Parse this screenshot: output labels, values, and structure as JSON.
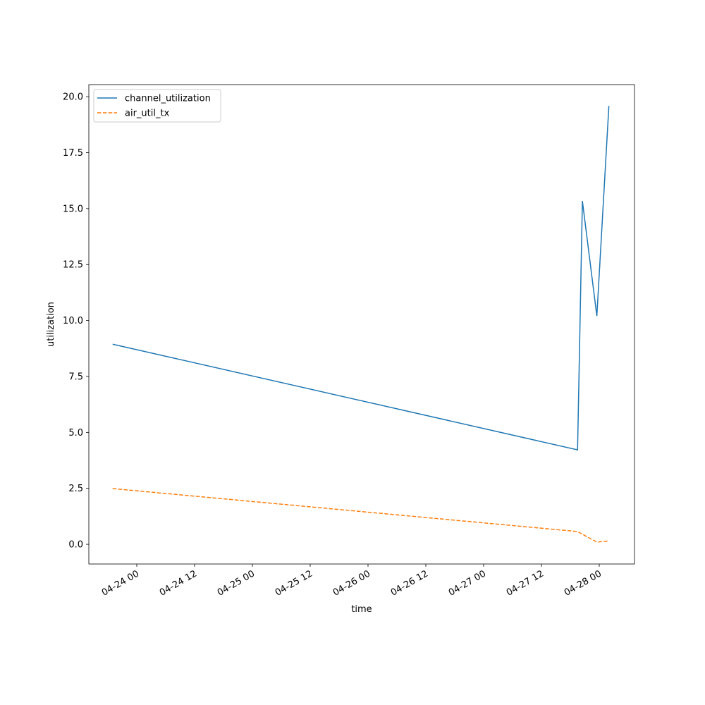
{
  "chart_data": {
    "type": "line",
    "xlabel": "time",
    "ylabel": "utilization",
    "x": [
      "04-23 19:00",
      "04-27 19:30",
      "04-27 20:30",
      "04-27 23:30",
      "04-28 02:00"
    ],
    "series": [
      {
        "name": "channel_utilization",
        "color": "#1f77b4",
        "linestyle": "solid",
        "values": [
          8.94,
          4.22,
          15.34,
          10.2,
          19.59
        ]
      },
      {
        "name": "air_util_tx",
        "color": "#ff7f0e",
        "linestyle": "dashed",
        "values": [
          2.49,
          0.57,
          0.45,
          0.1,
          0.15
        ]
      }
    ],
    "xlim": [
      "04-23 14:03",
      "04-28 07:19"
    ],
    "xticks": [
      "04-24 00",
      "04-24 12",
      "04-25 00",
      "04-25 12",
      "04-26 00",
      "04-26 12",
      "04-27 00",
      "04-27 12",
      "04-28 00"
    ],
    "ylim": [
      -0.88,
      20.54
    ],
    "yticks": [
      {
        "value": 0,
        "label": "0.0"
      },
      {
        "value": 2.5,
        "label": "2.5"
      },
      {
        "value": 5,
        "label": "5.0"
      },
      {
        "value": 7.5,
        "label": "7.5"
      },
      {
        "value": 10,
        "label": "10.0"
      },
      {
        "value": 12.5,
        "label": "12.5"
      },
      {
        "value": 15,
        "label": "15.0"
      },
      {
        "value": 17.5,
        "label": "17.5"
      },
      {
        "value": 20,
        "label": "20.0"
      }
    ],
    "grid": false,
    "legend": "upper left"
  }
}
